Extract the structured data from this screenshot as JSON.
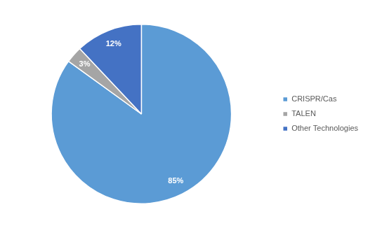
{
  "chart_data": {
    "type": "pie",
    "categories": [
      "CRISPR/Cas",
      "TALEN",
      "Other Technologies"
    ],
    "values": [
      85,
      3,
      12
    ],
    "value_labels": [
      "85%",
      "3%",
      "12%"
    ],
    "colors": [
      "#5b9bd5",
      "#a5a5a5",
      "#4472c4"
    ],
    "data_labels": true,
    "legend": "right"
  }
}
